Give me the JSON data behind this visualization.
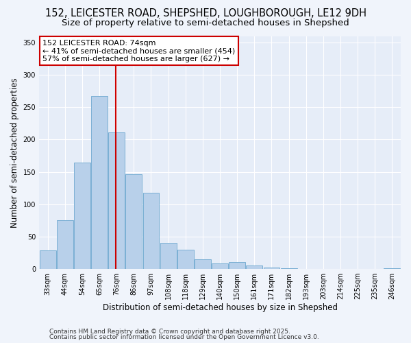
{
  "title": "152, LEICESTER ROAD, SHEPSHED, LOUGHBOROUGH, LE12 9DH",
  "subtitle": "Size of property relative to semi-detached houses in Shepshed",
  "xlabel": "Distribution of semi-detached houses by size in Shepshed",
  "ylabel": "Number of semi-detached properties",
  "categories": [
    "33sqm",
    "44sqm",
    "54sqm",
    "65sqm",
    "76sqm",
    "86sqm",
    "97sqm",
    "108sqm",
    "118sqm",
    "129sqm",
    "140sqm",
    "150sqm",
    "161sqm",
    "171sqm",
    "182sqm",
    "193sqm",
    "203sqm",
    "214sqm",
    "225sqm",
    "235sqm",
    "246sqm"
  ],
  "values": [
    29,
    75,
    164,
    267,
    211,
    146,
    118,
    40,
    30,
    15,
    9,
    11,
    5,
    2,
    1,
    0,
    0,
    0,
    0,
    0,
    1
  ],
  "bar_color": "#b8d0ea",
  "bar_edge_color": "#7aafd4",
  "vline_x_index": 3.97,
  "vline_color": "#cc0000",
  "annotation_title": "152 LEICESTER ROAD: 74sqm",
  "annotation_line1": "← 41% of semi-detached houses are smaller (454)",
  "annotation_line2": "57% of semi-detached houses are larger (627) →",
  "annotation_box_color": "#ffffff",
  "annotation_box_edge": "#cc0000",
  "ylim": [
    0,
    360
  ],
  "yticks": [
    0,
    50,
    100,
    150,
    200,
    250,
    300,
    350
  ],
  "footnote1": "Contains HM Land Registry data © Crown copyright and database right 2025.",
  "footnote2": "Contains public sector information licensed under the Open Government Licence v3.0.",
  "bg_color": "#f0f4fb",
  "plot_bg_color": "#e6edf8",
  "title_fontsize": 10.5,
  "subtitle_fontsize": 9.5,
  "axis_label_fontsize": 8.5,
  "tick_fontsize": 7,
  "annotation_fontsize": 8,
  "footnote_fontsize": 6.5
}
